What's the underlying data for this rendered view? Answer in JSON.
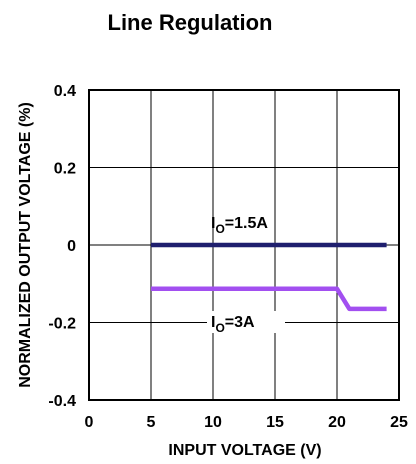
{
  "chart_data": {
    "type": "line",
    "title": "Line Regulation",
    "xlabel": "INPUT VOLTAGE (V)",
    "ylabel": "NORMALIZED OUTPUT VOLTAGE (%)",
    "xlim": [
      0,
      25
    ],
    "ylim": [
      -0.4,
      0.4
    ],
    "xticks": [
      "0",
      "5",
      "10",
      "15",
      "20",
      "25"
    ],
    "yticks": [
      "0.4",
      "0.2",
      "0",
      "-0.2",
      "-0.4"
    ],
    "grid": true,
    "series": [
      {
        "name": "IO=1.5A",
        "label_main": "I",
        "label_sub": "O",
        "label_rest": "=1.5A",
        "color": "#1f1f6e",
        "x": [
          5,
          24
        ],
        "y": [
          0,
          0
        ]
      },
      {
        "name": "IO=3A",
        "label_main": "I",
        "label_sub": "O",
        "label_rest": "=3A",
        "color": "#a24ff0",
        "x": [
          5,
          20,
          21,
          24
        ],
        "y": [
          -0.113,
          -0.113,
          -0.165,
          -0.165
        ]
      }
    ]
  }
}
